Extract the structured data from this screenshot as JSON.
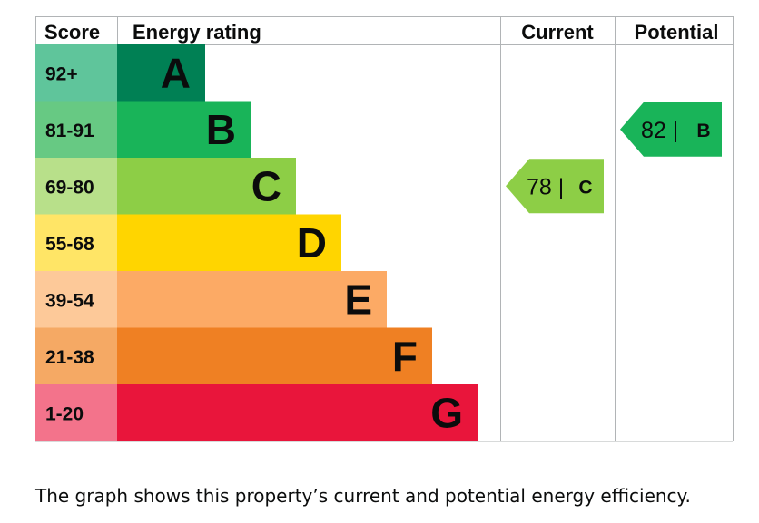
{
  "chart_data": {
    "type": "bar",
    "headers": {
      "score": "Score",
      "rating": "Energy rating",
      "current": "Current",
      "potential": "Potential"
    },
    "bands": [
      {
        "letter": "A",
        "range": "92+",
        "min": 92,
        "max": 100,
        "color": "#008054",
        "score_color": "#5fc59b"
      },
      {
        "letter": "B",
        "range": "81-91",
        "min": 81,
        "max": 91,
        "color": "#19b459",
        "score_color": "#67c983"
      },
      {
        "letter": "C",
        "range": "69-80",
        "min": 69,
        "max": 80,
        "color": "#8dce46",
        "score_color": "#b8e08a"
      },
      {
        "letter": "D",
        "range": "55-68",
        "min": 55,
        "max": 68,
        "color": "#ffd500",
        "score_color": "#ffe566"
      },
      {
        "letter": "E",
        "range": "39-54",
        "min": 39,
        "max": 54,
        "color": "#fcaa65",
        "score_color": "#fdc999"
      },
      {
        "letter": "F",
        "range": "21-38",
        "min": 21,
        "max": 38,
        "color": "#ef8023",
        "score_color": "#f5a964"
      },
      {
        "letter": "G",
        "range": "1-20",
        "min": 1,
        "max": 20,
        "color": "#e9153b",
        "score_color": "#f3738b"
      }
    ],
    "current": {
      "value": 78,
      "letter": "C",
      "label": "78 |",
      "color": "#8dce46"
    },
    "potential": {
      "value": 82,
      "letter": "B",
      "label": "82 |",
      "color": "#19b459"
    }
  },
  "caption": "The graph shows this property’s current and potential energy efficiency."
}
